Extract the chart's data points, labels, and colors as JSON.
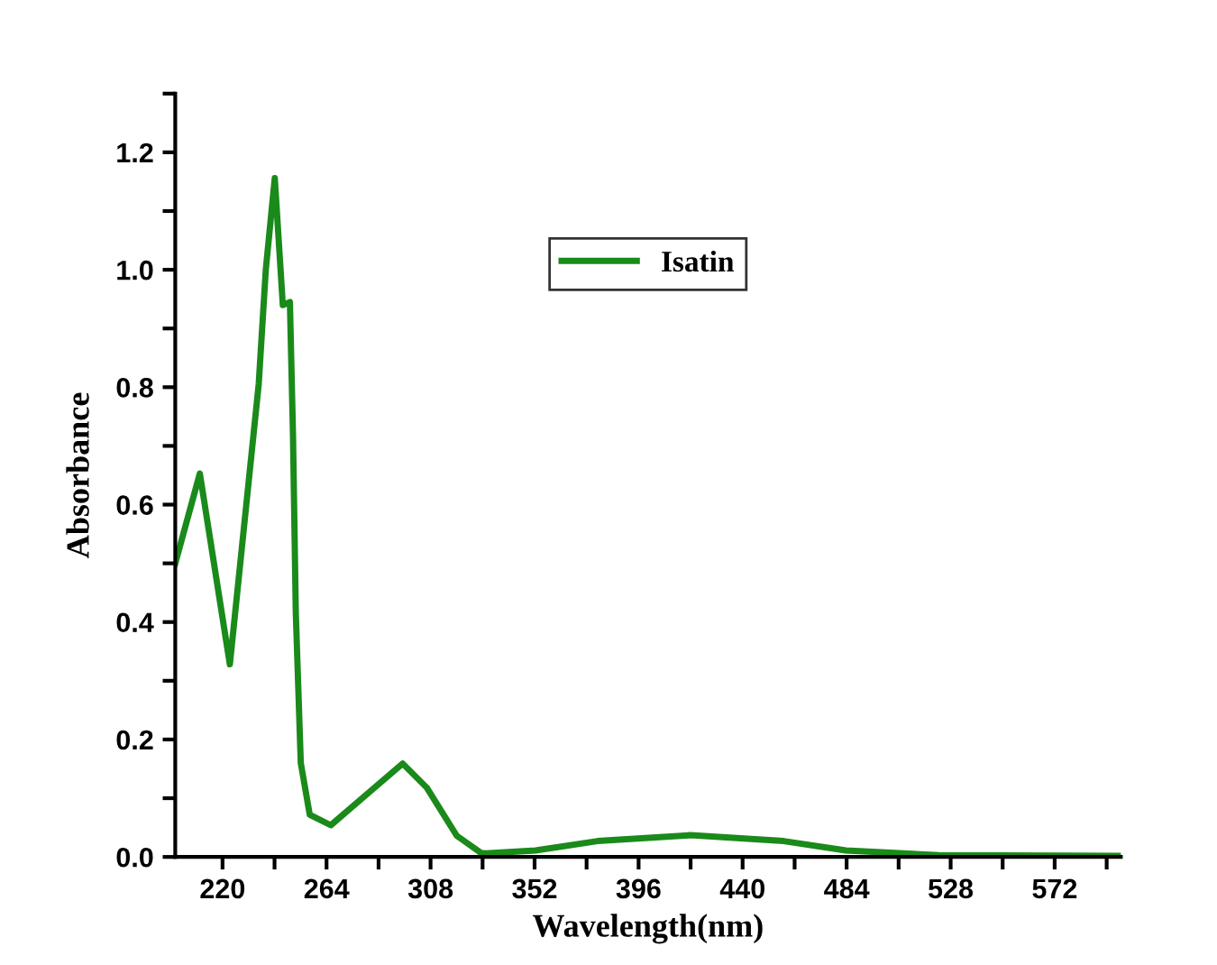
{
  "chart_data": {
    "type": "line",
    "xlabel": "Wavelength(nm)",
    "ylabel": "Absorbance",
    "series": [
      {
        "name": "Isatin",
        "color": "#1a8a1a",
        "x": [
          200,
          210.4,
          223.1,
          235.3,
          238.3,
          242.1,
          245.5,
          248.5,
          249.8,
          251,
          253.1,
          256.9,
          265.8,
          278.5,
          296.2,
          306.4,
          319.1,
          329.3,
          331.3,
          352.4,
          378.6,
          417.9,
          457.4,
          483.7,
          523,
          600
        ],
        "values": [
          0.5,
          0.653,
          0.328,
          0.805,
          1.0,
          1.156,
          0.94,
          0.945,
          0.72,
          0.415,
          0.16,
          0.072,
          0.054,
          0.098,
          0.159,
          0.118,
          0.036,
          0.007,
          0.006,
          0.011,
          0.027,
          0.037,
          0.027,
          0.011,
          0.003,
          0.002
        ]
      }
    ],
    "xlim": [
      200,
      600
    ],
    "xticks": [
      220,
      {
        "value": 242,
        "label": null
      },
      264,
      {
        "value": 286,
        "label": null
      },
      308,
      {
        "value": 330,
        "label": null
      },
      352,
      {
        "value": 374,
        "label": null
      },
      396,
      {
        "value": 418,
        "label": null
      },
      440,
      {
        "value": 462,
        "label": null
      },
      484,
      {
        "value": 506,
        "label": null
      },
      528,
      {
        "value": 550,
        "label": null
      },
      572,
      {
        "value": 594,
        "label": null
      }
    ],
    "ylim": [
      0,
      1.3
    ],
    "yticks": [
      {
        "value": 0,
        "label": "0.0"
      },
      {
        "value": 0.1,
        "label": null
      },
      0.2,
      {
        "value": 0.3,
        "label": null
      },
      0.4,
      {
        "value": 0.5,
        "label": null
      },
      0.6,
      {
        "value": 0.7,
        "label": null
      },
      0.8,
      {
        "value": 0.9,
        "label": null
      },
      {
        "value": 1.0,
        "label": "1.0"
      },
      {
        "value": 1.1,
        "label": null
      },
      1.2,
      {
        "value": 1.3,
        "label": null
      }
    ],
    "grid": false,
    "legend": "top center",
    "marker": "none",
    "line_style": "solid"
  }
}
